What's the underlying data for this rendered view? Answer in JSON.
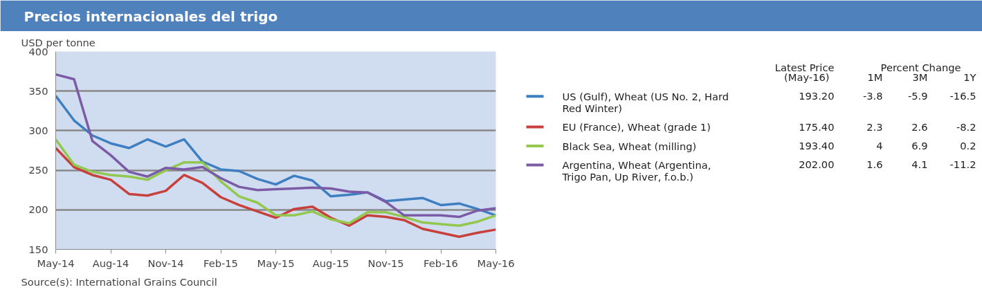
{
  "chart_data": {
    "type": "line",
    "title": "Precios internacionales del trigo",
    "ylabel": "USD per tonne",
    "x": [
      "2014-05",
      "2014-06",
      "2014-07",
      "2014-08",
      "2014-09",
      "2014-10",
      "2014-11",
      "2014-12",
      "2015-01",
      "2015-02",
      "2015-03",
      "2015-04",
      "2015-05",
      "2015-06",
      "2015-07",
      "2015-08",
      "2015-09",
      "2015-10",
      "2015-11",
      "2015-12",
      "2016-01",
      "2016-02",
      "2016-03",
      "2016-04",
      "2016-05"
    ],
    "series": [
      {
        "name": "US (Gulf), Wheat (US No. 2, Hard Red Winter)",
        "color": "#3d7fc1",
        "values": [
          344,
          313,
          294,
          284,
          278,
          289,
          280,
          289,
          261,
          251,
          249,
          239,
          232,
          243,
          237,
          217,
          219,
          222,
          211,
          213,
          215,
          206,
          208,
          201,
          193
        ]
      },
      {
        "name": "EU (France), Wheat (grade 1)",
        "color": "#c8403c",
        "values": [
          278,
          254,
          244,
          238,
          220,
          218,
          224,
          244,
          234,
          216,
          206,
          198,
          190,
          201,
          204,
          190,
          180,
          193,
          191,
          187,
          176,
          171,
          166,
          171,
          175
        ]
      },
      {
        "name": "Black Sea, Wheat (milling)",
        "color": "#92c84e",
        "values": [
          289,
          257,
          248,
          244,
          242,
          238,
          250,
          260,
          260,
          236,
          217,
          209,
          193,
          193,
          198,
          188,
          183,
          197,
          197,
          191,
          184,
          182,
          180,
          185,
          193
        ]
      },
      {
        "name": "Argentina, Wheat (Argentina, Trigo Pan, Up River, f.o.b.)",
        "color": "#7b5aa6",
        "values": [
          371,
          365,
          287,
          269,
          248,
          242,
          253,
          251,
          254,
          240,
          229,
          225,
          226,
          227,
          228,
          227,
          223,
          222,
          210,
          193,
          193,
          193,
          191,
          199,
          202
        ]
      }
    ],
    "xlim": [
      "2014-05",
      "2016-05"
    ],
    "xticks": [
      {
        "value": "2014-05",
        "label": "May-14"
      },
      {
        "value": "2014-08",
        "label": "Aug-14"
      },
      {
        "value": "2014-11",
        "label": "Nov-14"
      },
      {
        "value": "2015-02",
        "label": "Feb-15"
      },
      {
        "value": "2015-05",
        "label": "May-15"
      },
      {
        "value": "2015-08",
        "label": "Aug-15"
      },
      {
        "value": "2015-11",
        "label": "Nov-15"
      },
      {
        "value": "2016-02",
        "label": "Feb-16"
      },
      {
        "value": "2016-05",
        "label": "May-16"
      }
    ],
    "ylim": [
      150,
      400
    ],
    "yticks": [
      150,
      200,
      250,
      300,
      350,
      400
    ],
    "grid": "y",
    "legend": "right",
    "line_style": "solid",
    "marker": "none",
    "annotations": [
      "Source(s): International Grains Council",
      "Latest Price",
      "(May-16)",
      "Percent Change",
      "1M",
      "3M",
      "1Y",
      "193.20",
      "-3.8",
      "-5.9",
      "-16.5",
      "175.40",
      "2.3",
      "2.6",
      "-8.2",
      "193.40",
      "4",
      "6.9",
      "0.2",
      "202.00",
      "1.6",
      "4.1",
      "-11.2"
    ]
  }
}
